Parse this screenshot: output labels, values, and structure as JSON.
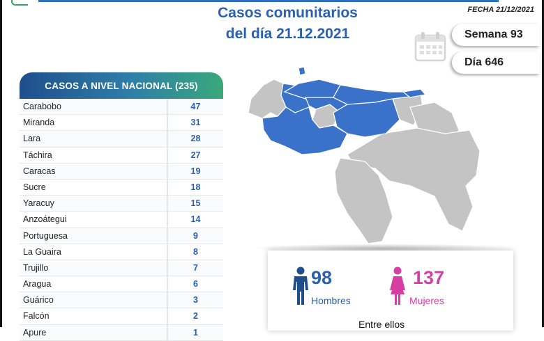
{
  "header": {
    "title_line1": "Casos comunitarios",
    "title_line2": "del día 21.12.2021",
    "date_label": "FECHA 21/12/2021"
  },
  "info": {
    "week": "Semana 93",
    "day": "Día 646"
  },
  "table": {
    "title": "CASOS A NIVEL NACIONAL",
    "total": "(235)",
    "rows": [
      {
        "name": "Carabobo",
        "value": "47"
      },
      {
        "name": "Miranda",
        "value": "31"
      },
      {
        "name": "Lara",
        "value": "28"
      },
      {
        "name": "Táchira",
        "value": "27"
      },
      {
        "name": "Caracas",
        "value": "19"
      },
      {
        "name": "Sucre",
        "value": "18"
      },
      {
        "name": "Yaracuy",
        "value": "15"
      },
      {
        "name": "Anzoátegui",
        "value": "14"
      },
      {
        "name": "Portuguesa",
        "value": "9"
      },
      {
        "name": "La Guaira",
        "value": "8"
      },
      {
        "name": "Trujillo",
        "value": "7"
      },
      {
        "name": "Aragua",
        "value": "6"
      },
      {
        "name": "Guárico",
        "value": "3"
      },
      {
        "name": "Falcón",
        "value": "2"
      },
      {
        "name": "Apure",
        "value": "1"
      }
    ]
  },
  "gender": {
    "men_count": "98",
    "men_label": "Hombres",
    "women_count": "137",
    "women_label": "Mujeres",
    "footer_text": "Entre ellos"
  },
  "colors": {
    "accent_blue": "#2b5fb0",
    "map_highlight": "#3a72c9",
    "map_base": "#c4c4c4",
    "women_pink": "#d63ea4"
  },
  "icons": [
    "calendar-icon",
    "man-icon",
    "woman-icon"
  ]
}
